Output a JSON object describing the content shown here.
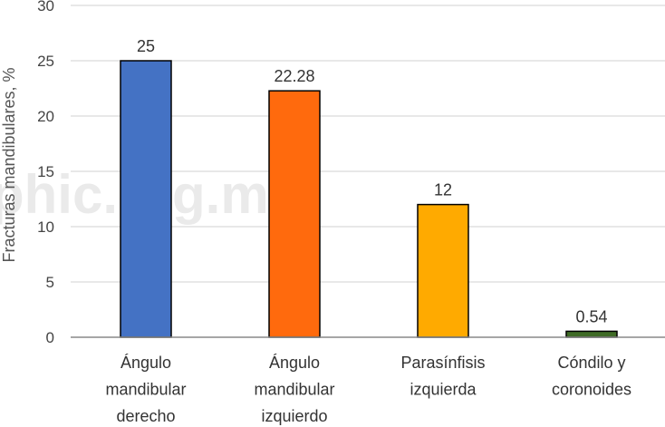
{
  "watermark": "phic.org.mx",
  "chart_data": {
    "type": "bar",
    "ylabel": "Fracturas mandibulares, %",
    "xlabel": "",
    "ylim": [
      0,
      30
    ],
    "yticks": [
      "0",
      "5",
      "10",
      "15",
      "20",
      "25",
      "30"
    ],
    "grid": true,
    "categories": [
      [
        "Ángulo",
        "mandibular",
        "derecho"
      ],
      [
        "Ángulo",
        "mandibular",
        "izquierdo"
      ],
      [
        "Parasínfisis",
        "izquierda"
      ],
      [
        "Cóndilo y",
        "coronoides"
      ]
    ],
    "values": [
      25,
      22.28,
      12,
      0.54
    ],
    "data_labels": [
      "25",
      "22.28",
      "12",
      "0.54"
    ],
    "colors": [
      "#4472C4",
      "#FF6A0D",
      "#FFAA00",
      "#3F6B26"
    ]
  }
}
